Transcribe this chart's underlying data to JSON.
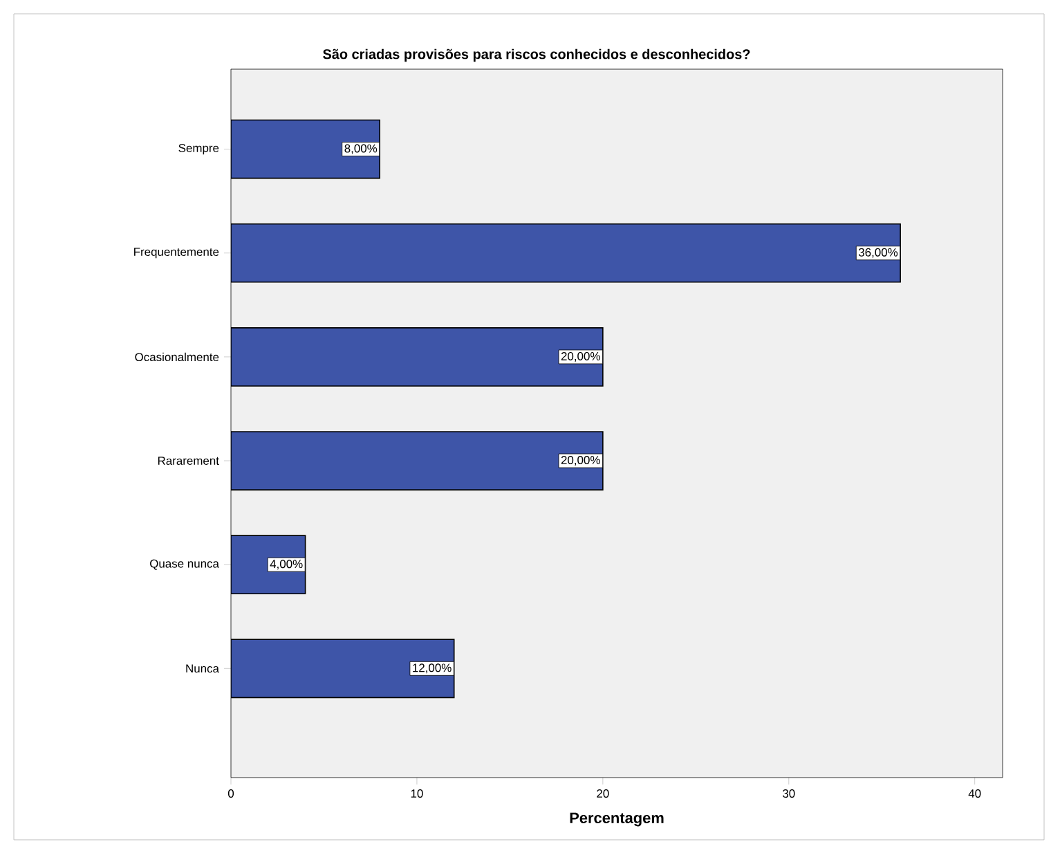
{
  "chart_data": {
    "type": "bar",
    "orientation": "horizontal",
    "title": "São criadas provisões para riscos conhecidos e desconhecidos?",
    "xlabel": "Percentagem",
    "categories": [
      "Sempre",
      "Frequentemente",
      "Ocasionalmente",
      "Rararement",
      "Quase nunca",
      "Nunca"
    ],
    "values": [
      8,
      36,
      20,
      20,
      4,
      12
    ],
    "value_labels": [
      "8,00%",
      "36,00%",
      "20,00%",
      "20,00%",
      "4,00%",
      "12,00%"
    ],
    "color": "#3e55a8",
    "xlim": [
      0,
      41.5
    ],
    "xticks": [
      0,
      10,
      20,
      30,
      40
    ]
  }
}
